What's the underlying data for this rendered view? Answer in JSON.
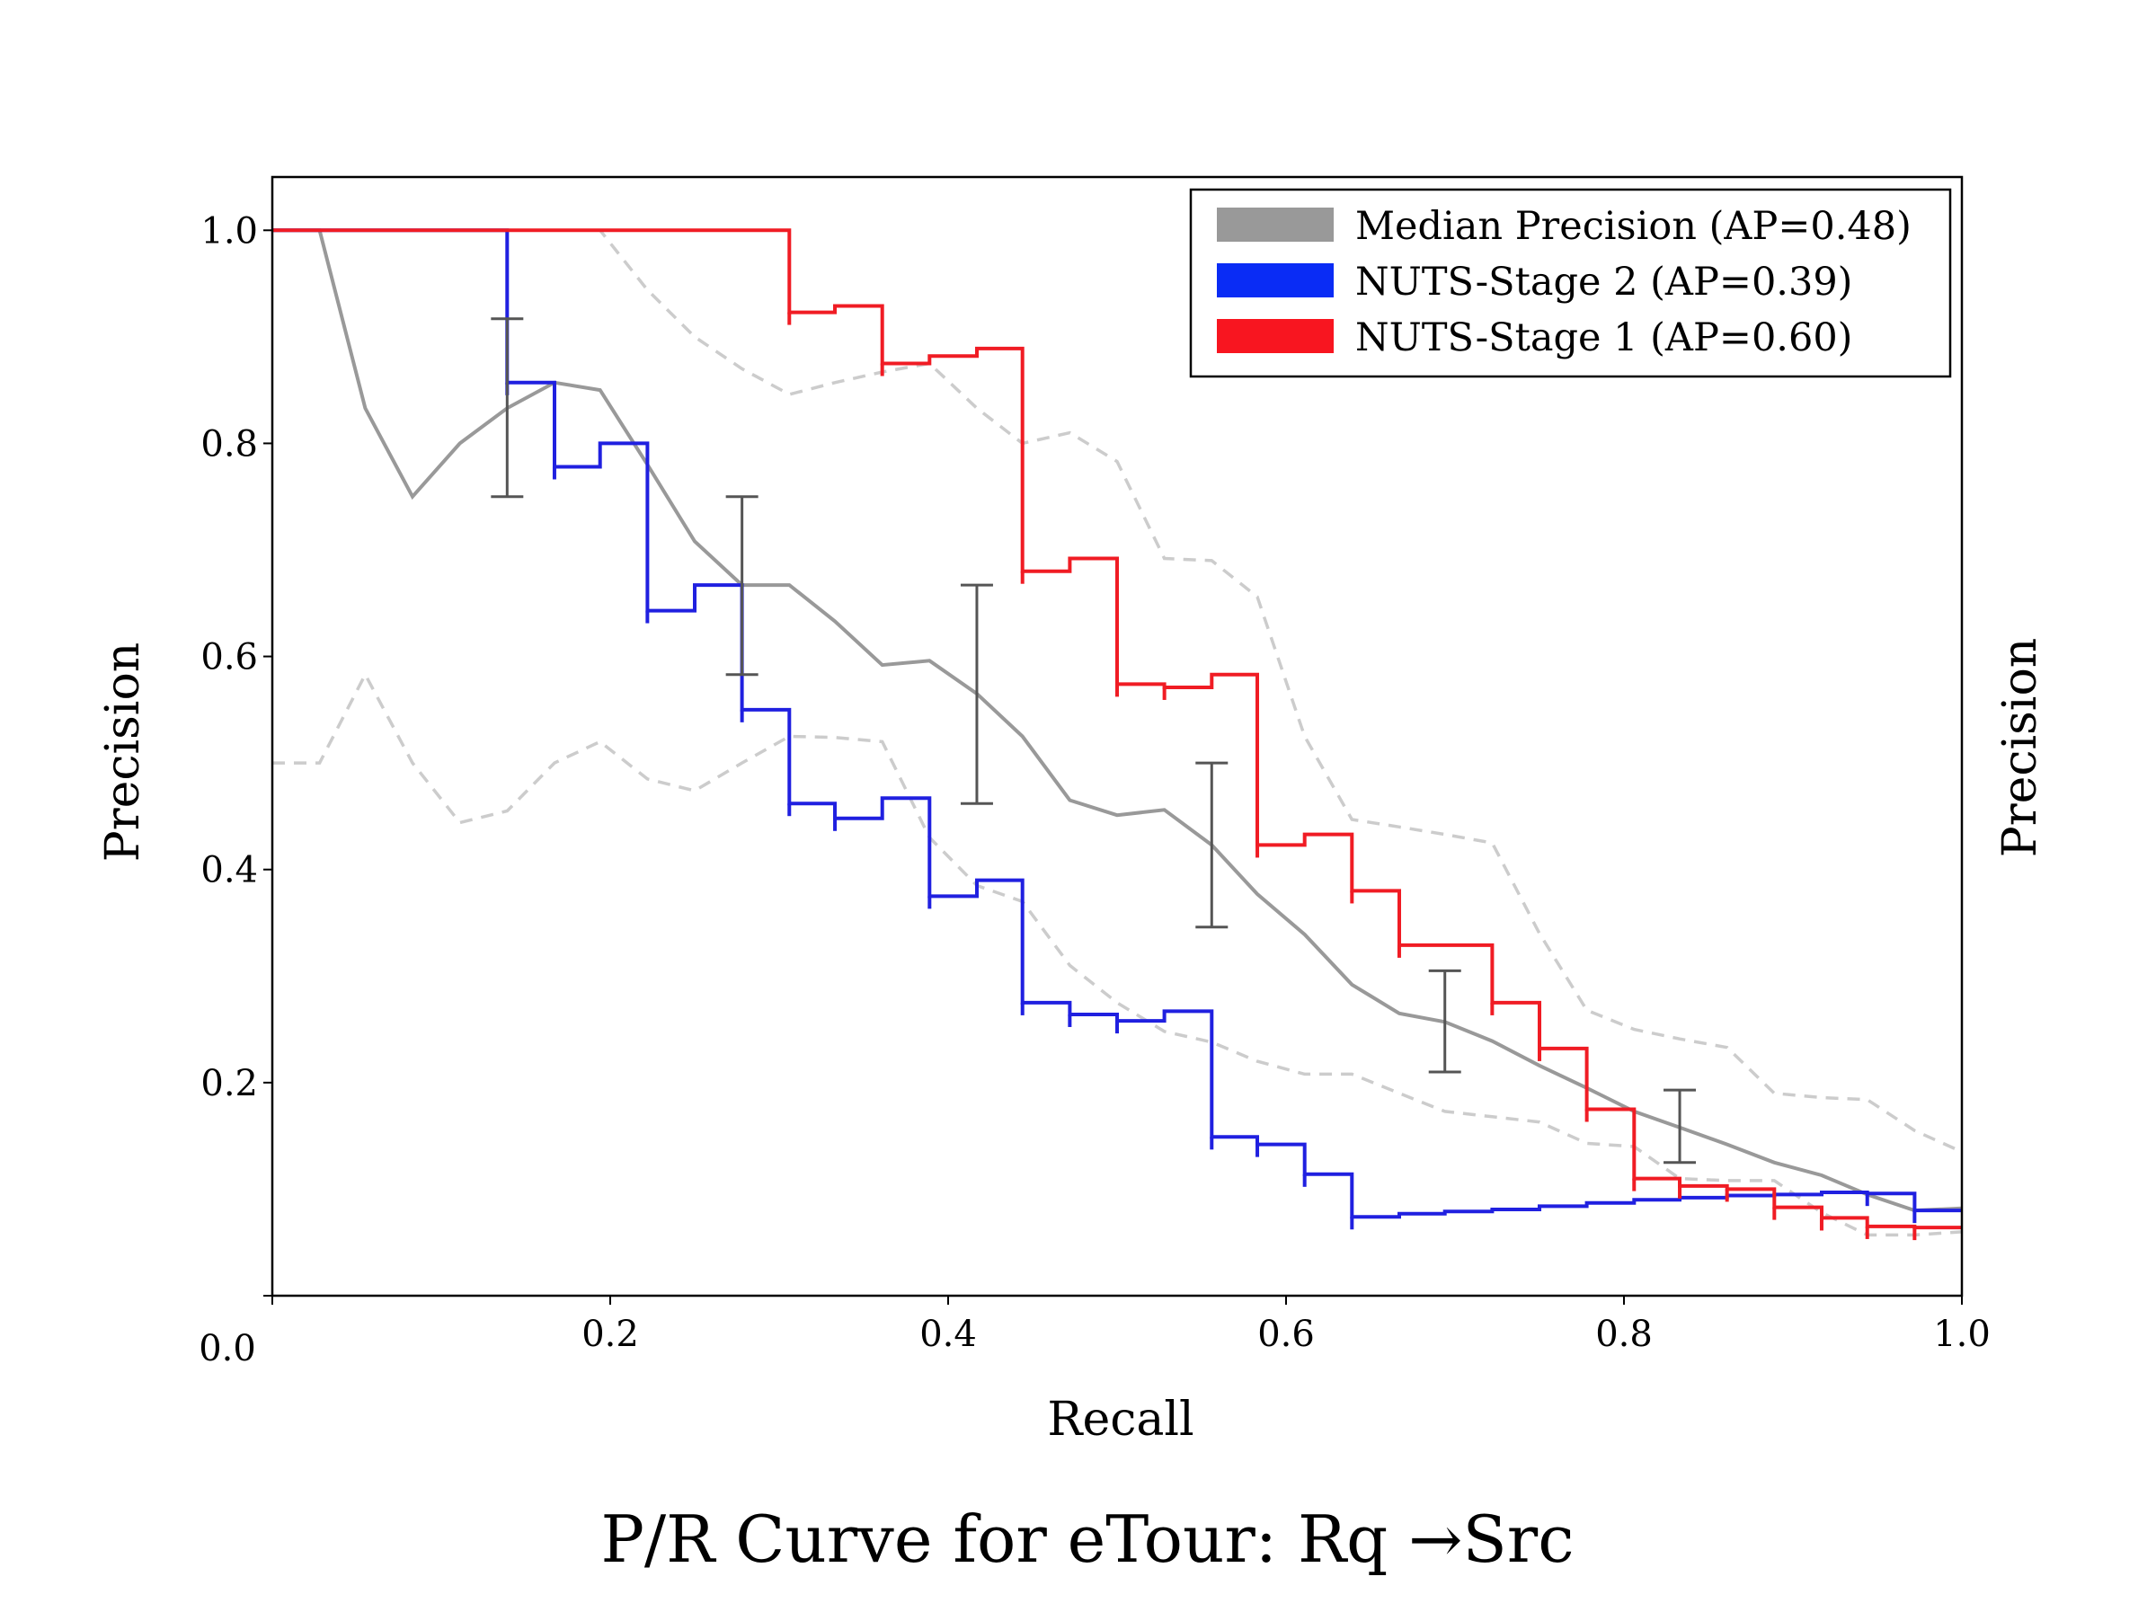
{
  "chart_data": {
    "type": "line",
    "title": "P/R Curve for eTour: Rq →Src",
    "xlabel": "Recall",
    "ylabel": "Precision",
    "ylabel_right": "Precision",
    "xlim": [
      0.0,
      1.0
    ],
    "ylim": [
      0.0,
      1.05
    ],
    "x_ticks": [
      "0.0",
      "0.2",
      "0.4",
      "0.6",
      "0.8",
      "1.0"
    ],
    "y_ticks": [
      "0.2",
      "0.4",
      "0.6",
      "0.8",
      "1.0"
    ],
    "legend_position": "top-right",
    "colors": {
      "median": "#999999",
      "stage2": "#2020e0",
      "stage1": "#f01c24",
      "band": "#cccccc",
      "errorbar": "#555555"
    },
    "legend": [
      {
        "label": "Median Precision (AP=0.48)",
        "color": "#999999"
      },
      {
        "label": "NUTS-Stage 2 (AP=0.39)",
        "color": "#0a2cf5"
      },
      {
        "label": "NUTS-Stage 1 (AP=0.60)",
        "color": "#f81520"
      }
    ],
    "series": [
      {
        "key": "median",
        "style": "line",
        "x": [
          0.0,
          0.028,
          0.055,
          0.083,
          0.111,
          0.139,
          0.167,
          0.194,
          0.222,
          0.25,
          0.278,
          0.306,
          0.333,
          0.361,
          0.389,
          0.417,
          0.444,
          0.472,
          0.5,
          0.528,
          0.556,
          0.583,
          0.611,
          0.639,
          0.667,
          0.694,
          0.722,
          0.75,
          0.778,
          0.806,
          0.833,
          0.861,
          0.889,
          0.917,
          0.944,
          0.972,
          1.0
        ],
        "y": [
          1.0,
          1.0,
          0.833,
          0.75,
          0.8,
          0.833,
          0.857,
          0.85,
          0.78,
          0.708,
          0.667,
          0.667,
          0.633,
          0.592,
          0.596,
          0.565,
          0.525,
          0.465,
          0.451,
          0.456,
          0.423,
          0.377,
          0.339,
          0.292,
          0.265,
          0.257,
          0.239,
          0.216,
          0.195,
          0.173,
          0.158,
          0.142,
          0.125,
          0.113,
          0.095,
          0.08,
          0.082
        ]
      },
      {
        "key": "band_upper",
        "style": "dashed",
        "x": [
          0.0,
          0.194,
          0.222,
          0.25,
          0.278,
          0.306,
          0.333,
          0.361,
          0.389,
          0.417,
          0.444,
          0.472,
          0.5,
          0.528,
          0.556,
          0.583,
          0.611,
          0.639,
          0.667,
          0.694,
          0.722,
          0.75,
          0.778,
          0.806,
          0.833,
          0.861,
          0.889,
          0.917,
          0.944,
          0.972,
          1.0
        ],
        "y": [
          1.0,
          1.0,
          0.944,
          0.9,
          0.87,
          0.846,
          0.857,
          0.867,
          0.875,
          0.833,
          0.8,
          0.81,
          0.783,
          0.692,
          0.69,
          0.656,
          0.525,
          0.447,
          0.44,
          0.433,
          0.425,
          0.34,
          0.268,
          0.25,
          0.241,
          0.233,
          0.19,
          0.186,
          0.184,
          0.155,
          0.135
        ]
      },
      {
        "key": "band_lower",
        "style": "dashed",
        "x": [
          0.0,
          0.028,
          0.055,
          0.083,
          0.111,
          0.139,
          0.167,
          0.194,
          0.222,
          0.25,
          0.278,
          0.306,
          0.333,
          0.361,
          0.389,
          0.417,
          0.444,
          0.472,
          0.5,
          0.528,
          0.556,
          0.583,
          0.611,
          0.639,
          0.667,
          0.694,
          0.722,
          0.75,
          0.778,
          0.806,
          0.833,
          0.861,
          0.889,
          0.917,
          0.944,
          0.972,
          1.0
        ],
        "y": [
          0.5,
          0.5,
          0.583,
          0.5,
          0.444,
          0.455,
          0.5,
          0.52,
          0.485,
          0.474,
          0.5,
          0.525,
          0.524,
          0.52,
          0.43,
          0.385,
          0.37,
          0.31,
          0.275,
          0.248,
          0.238,
          0.22,
          0.208,
          0.208,
          0.19,
          0.173,
          0.168,
          0.163,
          0.143,
          0.14,
          0.11,
          0.108,
          0.108,
          0.078,
          0.057,
          0.057,
          0.06
        ]
      },
      {
        "key": "stage2",
        "style": "step",
        "x": [
          0.0,
          0.139,
          0.139,
          0.167,
          0.167,
          0.194,
          0.194,
          0.222,
          0.222,
          0.25,
          0.25,
          0.278,
          0.278,
          0.306,
          0.306,
          0.333,
          0.333,
          0.361,
          0.361,
          0.389,
          0.389,
          0.417,
          0.417,
          0.444,
          0.444,
          0.472,
          0.472,
          0.5,
          0.5,
          0.528,
          0.528,
          0.556,
          0.556,
          0.583,
          0.583,
          0.611,
          0.611,
          0.639,
          0.639,
          0.667,
          0.667,
          0.694,
          0.694,
          0.722,
          0.722,
          0.75,
          0.75,
          0.778,
          0.778,
          0.806,
          0.806,
          0.833,
          0.833,
          0.861,
          0.861,
          0.889,
          0.889,
          0.917,
          0.917,
          0.944,
          0.944,
          0.972,
          0.972,
          1.0
        ],
        "y": [
          1.0,
          1.0,
          0.857,
          0.857,
          0.778,
          0.778,
          0.8,
          0.8,
          0.643,
          0.643,
          0.667,
          0.667,
          0.55,
          0.55,
          0.462,
          0.462,
          0.448,
          0.448,
          0.467,
          0.467,
          0.375,
          0.375,
          0.39,
          0.39,
          0.275,
          0.275,
          0.264,
          0.264,
          0.258,
          0.258,
          0.267,
          0.267,
          0.149,
          0.149,
          0.142,
          0.142,
          0.114,
          0.114,
          0.074,
          0.074,
          0.077,
          0.077,
          0.079,
          0.079,
          0.081,
          0.081,
          0.084,
          0.084,
          0.087,
          0.087,
          0.09,
          0.09,
          0.092,
          0.092,
          0.094,
          0.094,
          0.095,
          0.095,
          0.097,
          0.097,
          0.096,
          0.096,
          0.08,
          0.08
        ]
      },
      {
        "key": "stage1",
        "style": "step",
        "x": [
          0.0,
          0.306,
          0.306,
          0.333,
          0.333,
          0.361,
          0.361,
          0.389,
          0.389,
          0.417,
          0.417,
          0.444,
          0.444,
          0.472,
          0.472,
          0.5,
          0.5,
          0.528,
          0.528,
          0.556,
          0.556,
          0.583,
          0.583,
          0.611,
          0.611,
          0.639,
          0.639,
          0.667,
          0.667,
          0.694,
          0.694,
          0.722,
          0.722,
          0.75,
          0.75,
          0.778,
          0.778,
          0.806,
          0.806,
          0.833,
          0.833,
          0.861,
          0.861,
          0.889,
          0.889,
          0.917,
          0.917,
          0.944,
          0.944,
          0.972,
          0.972,
          1.0
        ],
        "y": [
          1.0,
          1.0,
          0.923,
          0.923,
          0.929,
          0.929,
          0.875,
          0.875,
          0.882,
          0.882,
          0.889,
          0.889,
          0.68,
          0.68,
          0.692,
          0.692,
          0.574,
          0.574,
          0.571,
          0.571,
          0.583,
          0.583,
          0.423,
          0.423,
          0.433,
          0.433,
          0.38,
          0.38,
          0.329,
          0.329,
          0.329,
          0.329,
          0.275,
          0.275,
          0.232,
          0.232,
          0.175,
          0.175,
          0.11,
          0.11,
          0.103,
          0.103,
          0.1,
          0.1,
          0.083,
          0.083,
          0.073,
          0.073,
          0.065,
          0.065,
          0.064,
          0.064
        ]
      }
    ],
    "errorbars": [
      {
        "x": 0.139,
        "low": 0.75,
        "high": 0.917
      },
      {
        "x": 0.278,
        "low": 0.583,
        "high": 0.75
      },
      {
        "x": 0.417,
        "low": 0.462,
        "high": 0.667
      },
      {
        "x": 0.556,
        "low": 0.346,
        "high": 0.5
      },
      {
        "x": 0.694,
        "low": 0.21,
        "high": 0.305
      },
      {
        "x": 0.833,
        "low": 0.125,
        "high": 0.193
      }
    ],
    "grid": false
  }
}
